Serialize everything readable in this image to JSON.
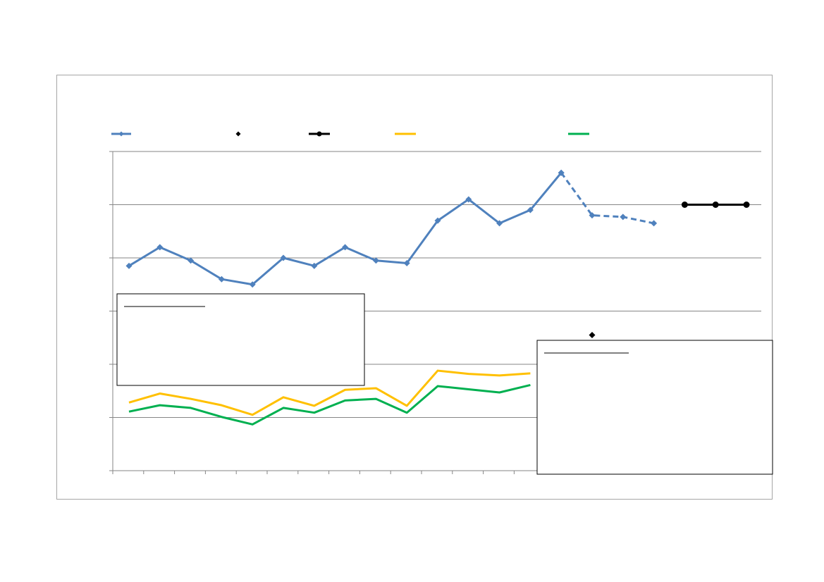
{
  "chart_data": {
    "type": "line",
    "title": "",
    "xlabel": "",
    "ylabel": "",
    "x": [
      1,
      2,
      3,
      4,
      5,
      6,
      7,
      8,
      9,
      10,
      11,
      12,
      13,
      14,
      15,
      16,
      17,
      18,
      19,
      20,
      21
    ],
    "ylim": [
      0,
      6
    ],
    "grid": true,
    "legend_position": "top",
    "series": [
      {
        "key": "blue",
        "color": "#4f81bd",
        "marker": "diamond",
        "segments": [
          {
            "style": "solid",
            "points": [
              [
                1,
                3.85
              ],
              [
                2,
                4.2
              ],
              [
                3,
                3.95
              ],
              [
                4,
                3.6
              ],
              [
                5,
                3.5
              ],
              [
                6,
                4.0
              ],
              [
                7,
                3.85
              ],
              [
                8,
                4.2
              ],
              [
                9,
                3.95
              ],
              [
                10,
                3.9
              ],
              [
                11,
                4.7
              ],
              [
                12,
                5.1
              ],
              [
                13,
                4.65
              ],
              [
                14,
                4.9
              ],
              [
                15,
                5.6
              ]
            ]
          },
          {
            "style": "dashed",
            "points": [
              [
                15,
                5.6
              ],
              [
                16,
                4.8
              ],
              [
                17,
                4.77
              ],
              [
                18,
                4.65
              ]
            ]
          }
        ]
      },
      {
        "key": "black-marker",
        "color": "#000000",
        "marker": "diamond",
        "segments": [
          {
            "style": "none",
            "points": [
              [
                16,
                2.55
              ]
            ]
          }
        ]
      },
      {
        "key": "black-line",
        "color": "#000000",
        "marker": "circle",
        "segments": [
          {
            "style": "solid",
            "points": [
              [
                19,
                5.0
              ],
              [
                20,
                5.0
              ],
              [
                21,
                5.0
              ]
            ]
          }
        ]
      },
      {
        "key": "yellow",
        "color": "#ffc000",
        "marker": "none",
        "segments": [
          {
            "style": "solid",
            "points": [
              [
                1,
                1.28
              ],
              [
                2,
                1.45
              ],
              [
                3,
                1.35
              ],
              [
                4,
                1.23
              ],
              [
                5,
                1.05
              ],
              [
                6,
                1.38
              ],
              [
                7,
                1.22
              ],
              [
                8,
                1.52
              ],
              [
                9,
                1.55
              ],
              [
                10,
                1.22
              ],
              [
                11,
                1.88
              ],
              [
                12,
                1.82
              ],
              [
                13,
                1.79
              ],
              [
                14,
                1.83
              ]
            ]
          }
        ]
      },
      {
        "key": "green",
        "color": "#00b050",
        "marker": "none",
        "segments": [
          {
            "style": "solid",
            "points": [
              [
                1,
                1.11
              ],
              [
                2,
                1.23
              ],
              [
                3,
                1.18
              ],
              [
                4,
                1.01
              ],
              [
                5,
                0.87
              ],
              [
                6,
                1.18
              ],
              [
                7,
                1.09
              ],
              [
                8,
                1.32
              ],
              [
                9,
                1.35
              ],
              [
                10,
                1.09
              ],
              [
                11,
                1.59
              ],
              [
                12,
                1.53
              ],
              [
                13,
                1.47
              ],
              [
                14,
                1.61
              ]
            ]
          }
        ]
      }
    ]
  }
}
